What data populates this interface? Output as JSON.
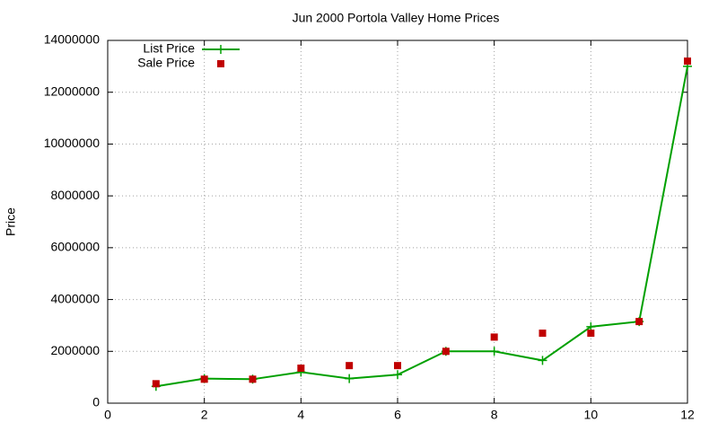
{
  "chart_data": {
    "type": "line",
    "title": "Jun 2000 Portola Valley Home Prices",
    "y_label": "Price",
    "x": [
      1,
      2,
      3,
      4,
      5,
      6,
      7,
      8,
      9,
      10,
      11,
      12
    ],
    "series": [
      {
        "name": "List Price",
        "color": "#00a000",
        "style": "linespoints",
        "values": [
          650000,
          950000,
          925000,
          1200000,
          950000,
          1100000,
          2000000,
          2000000,
          1650000,
          2950000,
          3150000,
          13000000
        ]
      },
      {
        "name": "Sale Price",
        "color": "#c00000",
        "style": "points",
        "values": [
          750000,
          925000,
          925000,
          1350000,
          1450000,
          1450000,
          2000000,
          2550000,
          2700000,
          2700000,
          3150000,
          13200000
        ]
      }
    ],
    "xlim": [
      0,
      12
    ],
    "xticks": [
      0,
      2,
      4,
      6,
      8,
      10,
      12
    ],
    "ylim": [
      0,
      14000000
    ],
    "yticks": [
      0,
      2000000,
      4000000,
      6000000,
      8000000,
      10000000,
      12000000,
      14000000
    ],
    "grid": true,
    "legend": "top-left"
  }
}
